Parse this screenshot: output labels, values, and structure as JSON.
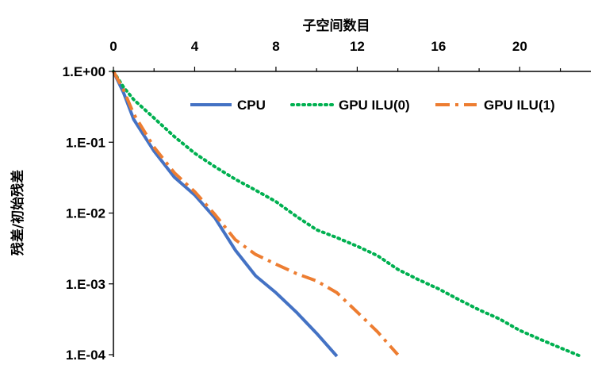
{
  "chart_data": {
    "type": "line",
    "title": "",
    "xlabel": "子空间数目",
    "ylabel": "残差/初始残差",
    "x_axis_position": "top",
    "xlim": [
      0,
      23.5
    ],
    "xticks": [
      0,
      4,
      8,
      12,
      16,
      20
    ],
    "xtick_labels": [
      "0",
      "4",
      "8",
      "12",
      "16",
      "20"
    ],
    "y_scale": "log",
    "ylim": [
      0.0001,
      1
    ],
    "yticks": [
      1,
      0.1,
      0.01,
      0.001,
      0.0001
    ],
    "ytick_labels": [
      "1.E+00",
      "1.E-01",
      "1.E-02",
      "1.E-03",
      "1.E-04"
    ],
    "grid": false,
    "legend_position": "top-right",
    "series": [
      {
        "name": "CPU",
        "color": "#4472C4",
        "style": "solid",
        "x": [
          0,
          0.5,
          1,
          2,
          3,
          4,
          5,
          6,
          7,
          8,
          9,
          10,
          11
        ],
        "y": [
          1,
          0.5,
          0.21,
          0.075,
          0.032,
          0.018,
          0.0085,
          0.003,
          0.0013,
          0.00075,
          0.0004,
          0.0002,
          9.5e-05
        ]
      },
      {
        "name": "GPU ILU(0)",
        "color": "#00B050",
        "style": "dotted",
        "x": [
          0,
          0.5,
          1,
          2,
          3,
          4,
          5,
          6,
          7,
          8,
          9,
          10,
          11,
          12,
          13,
          14,
          15,
          16,
          17,
          18,
          19,
          20,
          21,
          22,
          23
        ],
        "y": [
          1,
          0.6,
          0.4,
          0.22,
          0.12,
          0.07,
          0.045,
          0.03,
          0.021,
          0.0145,
          0.009,
          0.0058,
          0.0045,
          0.0034,
          0.0025,
          0.0016,
          0.00115,
          0.00085,
          0.0006,
          0.00043,
          0.00032,
          0.00022,
          0.000165,
          0.000125,
          9.5e-05
        ]
      },
      {
        "name": "GPU ILU(1)",
        "color": "#ED7D31",
        "style": "dashdot",
        "x": [
          0,
          0.5,
          1,
          2,
          3,
          4,
          5,
          6,
          7,
          8,
          9,
          10,
          11,
          12,
          13,
          14
        ],
        "y": [
          1,
          0.55,
          0.25,
          0.085,
          0.037,
          0.02,
          0.0095,
          0.0042,
          0.0026,
          0.0019,
          0.0014,
          0.0011,
          0.00075,
          0.0004,
          0.00021,
          0.0001
        ]
      }
    ]
  }
}
